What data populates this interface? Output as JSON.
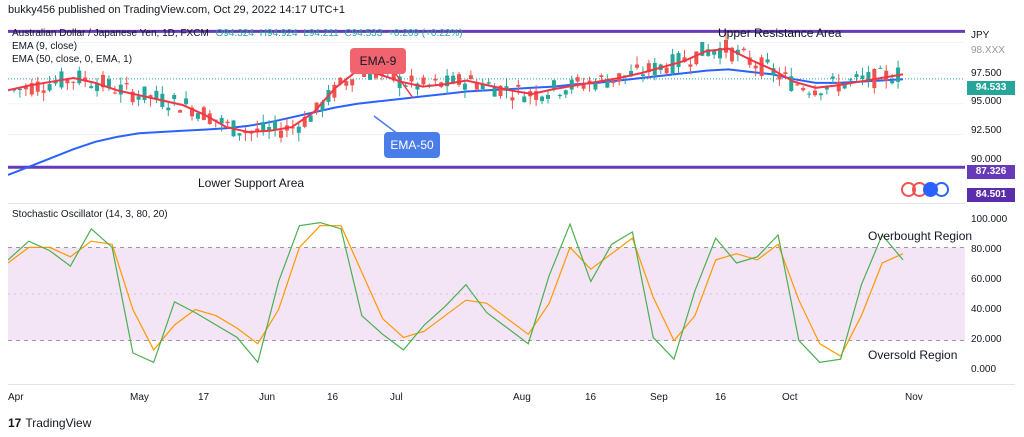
{
  "header": {
    "publisher": "bukky456 published on TradingView.com, Oct 29, 2022 14:17 UTC+1"
  },
  "symbol": {
    "name": "Australian Dollar / Japanese Yen, 1D, FXCM",
    "open": "O94.324",
    "high": "H94.924",
    "low": "L94.211",
    "close": "C94.533",
    "change": "+0.209 (+0.22%)"
  },
  "indicators": {
    "ema9": "EMA (9, close)",
    "ema50": "EMA (50, close, 0, EMA, 1)",
    "stoch": "Stochastic Oscillator (14, 3, 80, 20)"
  },
  "annotations": {
    "ema9_callout": "EMA-9",
    "ema50_callout": "EMA-50",
    "upper_area": "Upper Resistance Area",
    "lower_area": "Lower Support Area",
    "overbought": "Overbought Region",
    "oversold": "Oversold Region"
  },
  "price_scale": {
    "currency": "JPY",
    "ticks": [
      "97.500",
      "95.000",
      "92.500",
      "90.000"
    ],
    "last_price": "94.533",
    "resistance_value": "98.XXX",
    "support_value": "87.326",
    "bottom_value": "84.501"
  },
  "stoch_scale": {
    "ticks": [
      "100.000",
      "80.000",
      "60.000",
      "40.000",
      "20.000",
      "0.000"
    ]
  },
  "x_axis": {
    "labels": [
      "Apr",
      "May",
      "17",
      "Jun",
      "16",
      "Jul",
      "Aug",
      "16",
      "Sep",
      "16",
      "Oct",
      "Nov"
    ]
  },
  "footer": {
    "brand": "TradingView"
  },
  "colors": {
    "up": "#26a69a",
    "down": "#ef5350",
    "ema9": "#f23645",
    "ema50": "#2962ff",
    "level": "#673ab7",
    "stoch_k": "#4caf50",
    "stoch_d": "#ff9800",
    "callout9": "#f23645",
    "callout50": "#4a7de8",
    "band": "#f3e5f5"
  },
  "chart_data": {
    "type": "candlestick",
    "ema9": [
      93.6,
      94.0,
      94.3,
      94.6,
      94.2,
      93.6,
      93.2,
      92.8,
      92.4,
      91.6,
      90.6,
      90.2,
      90.3,
      90.6,
      91.8,
      93.8,
      95.2,
      94.9,
      94.3,
      93.9,
      94.1,
      94.4,
      94.0,
      93.6,
      93.3,
      93.7,
      94.0,
      94.3,
      94.6,
      95.0,
      95.5,
      96.0,
      96.8,
      97.0,
      96.1,
      95.3,
      94.3,
      93.8,
      94.0,
      94.3,
      94.6,
      94.9
    ],
    "ema50": [
      86.7,
      87.4,
      88.1,
      88.8,
      89.4,
      89.8,
      90.1,
      90.2,
      90.3,
      90.4,
      90.5,
      90.7,
      91.0,
      91.4,
      91.8,
      92.2,
      92.5,
      92.7,
      92.9,
      93.1,
      93.3,
      93.5,
      93.6,
      93.7,
      93.8,
      93.9,
      94.1,
      94.2,
      94.4,
      94.6,
      94.8,
      95.0,
      95.2,
      95.3,
      95.1,
      94.9,
      94.5,
      94.2,
      94.2,
      94.3,
      94.4,
      94.5
    ],
    "stoch_k": [
      72,
      84,
      78,
      68,
      92,
      80,
      12,
      6,
      45,
      38,
      30,
      22,
      6,
      58,
      94,
      96,
      92,
      36,
      24,
      14,
      30,
      42,
      56,
      38,
      28,
      18,
      62,
      95,
      58,
      82,
      90,
      22,
      8,
      52,
      86,
      70,
      74,
      88,
      20,
      6,
      8,
      56,
      88,
      72
    ],
    "stoch_d": [
      70,
      80,
      80,
      74,
      84,
      82,
      40,
      14,
      30,
      40,
      36,
      28,
      18,
      40,
      80,
      94,
      94,
      64,
      34,
      22,
      26,
      36,
      46,
      44,
      34,
      24,
      44,
      80,
      66,
      76,
      86,
      48,
      20,
      36,
      72,
      76,
      72,
      82,
      46,
      18,
      10,
      36,
      70,
      76
    ],
    "levels": {
      "upper_resistance": 98.4,
      "lower_support": 87.326,
      "overbought": 80,
      "oversold": 20
    },
    "y_range_price": [
      84.5,
      99.0
    ],
    "y_range_stoch": [
      -8,
      108
    ]
  }
}
